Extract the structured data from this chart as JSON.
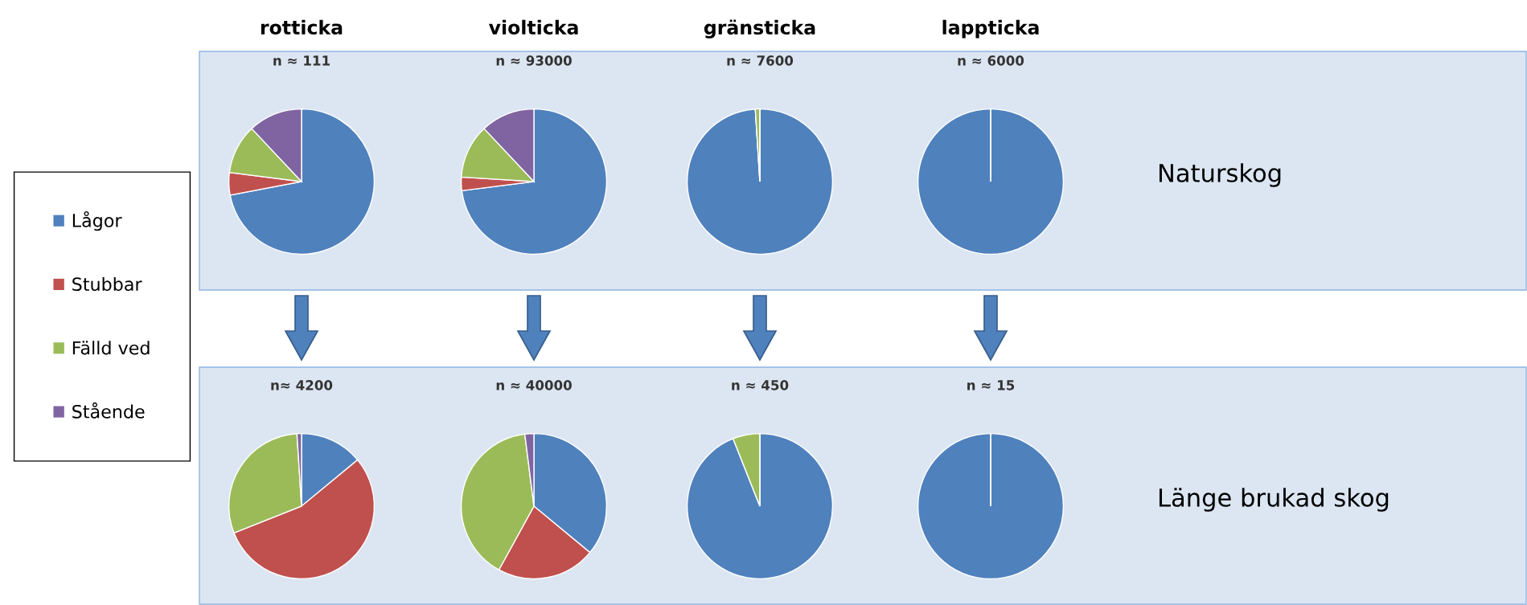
{
  "chart_data": [
    {
      "type": "pie",
      "title": "rotticka",
      "subtitle": "n ≈ 111",
      "categories": [
        "Lågor",
        "Stubbar",
        "Fälld ved",
        "Stående"
      ],
      "values": [
        72,
        5,
        11,
        12
      ],
      "colors": [
        "#4f81bd",
        "#c0504d",
        "#9bbb59",
        "#8064a2"
      ],
      "legend": "left"
    },
    {
      "type": "pie",
      "title": "violticka",
      "subtitle": "n ≈ 93000",
      "categories": [
        null,
        null,
        null,
        null
      ],
      "values": [
        73,
        3,
        12,
        12
      ],
      "colors": [
        "#4f81bd",
        "#c0504d",
        "#9bbb59",
        "#8064a2"
      ]
    },
    {
      "type": "pie",
      "title": "gränsticka",
      "subtitle": "n ≈ 7600",
      "categories": [
        null,
        null,
        null,
        null
      ],
      "values": [
        99,
        0,
        1,
        0
      ],
      "colors": [
        "#4f81bd",
        "#c0504d",
        "#9bbb59",
        "#8064a2"
      ]
    },
    {
      "type": "pie",
      "title": "lappticka",
      "subtitle": "n ≈ 6000",
      "categories": [
        null,
        null,
        null,
        null
      ],
      "values": [
        100,
        0,
        0,
        0
      ],
      "colors": [
        "#4f81bd",
        "#c0504d",
        "#9bbb59",
        "#8064a2"
      ],
      "annotations": [
        "Naturskog"
      ]
    },
    {
      "type": "pie",
      "subtitle": "n≈ 4200",
      "categories": [
        null,
        null,
        null,
        null
      ],
      "values": [
        14,
        55,
        30,
        1
      ],
      "colors": [
        "#4f81bd",
        "#c0504d",
        "#9bbb59",
        "#8064a2"
      ]
    },
    {
      "type": "pie",
      "subtitle": "n ≈ 40000",
      "categories": [
        null,
        null,
        null,
        null
      ],
      "values": [
        36,
        22,
        40,
        2
      ],
      "colors": [
        "#4f81bd",
        "#c0504d",
        "#9bbb59",
        "#8064a2"
      ]
    },
    {
      "type": "pie",
      "subtitle": "n ≈ 450",
      "categories": [
        null,
        null,
        null,
        null
      ],
      "values": [
        94,
        0,
        6,
        0
      ],
      "colors": [
        "#4f81bd",
        "#c0504d",
        "#9bbb59",
        "#8064a2"
      ]
    },
    {
      "type": "pie",
      "subtitle": "n ≈ 15",
      "categories": [
        null,
        null,
        null,
        null
      ],
      "values": [
        100,
        0,
        0,
        0
      ],
      "colors": [
        "#4f81bd",
        "#c0504d",
        "#9bbb59",
        "#8064a2"
      ],
      "annotations": [
        "Länge brukad skog"
      ]
    }
  ]
}
